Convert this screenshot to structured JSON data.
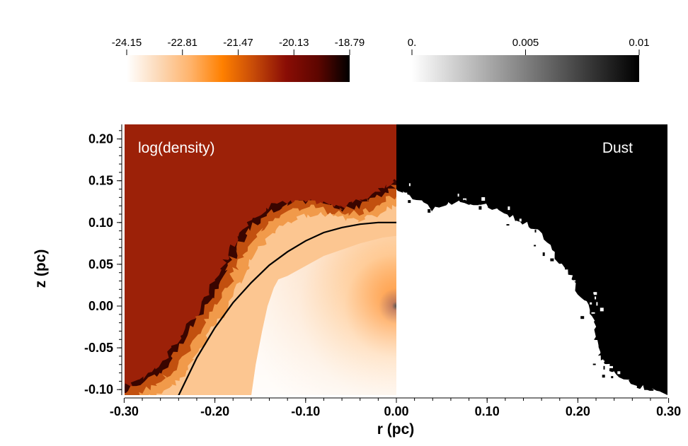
{
  "chart_data": {
    "type": "heatmap",
    "title": "",
    "xlabel": "r (pc)",
    "ylabel": "z (pc)",
    "xlim": [
      -0.325,
      0.325
    ],
    "ylim": [
      -0.108,
      0.215
    ],
    "x_ticks": [
      {
        "value": -0.3,
        "label": "-0.30"
      },
      {
        "value": -0.2,
        "label": "-0.20"
      },
      {
        "value": -0.1,
        "label": "-0.10"
      },
      {
        "value": 0.0,
        "label": "0.00"
      },
      {
        "value": 0.1,
        "label": "0.10"
      },
      {
        "value": 0.2,
        "label": "0.20"
      },
      {
        "value": 0.3,
        "label": "0.30"
      }
    ],
    "y_ticks": [
      {
        "value": 0.2,
        "label": "0.20"
      },
      {
        "value": 0.15,
        "label": "0.15"
      },
      {
        "value": 0.1,
        "label": "0.10"
      },
      {
        "value": 0.05,
        "label": "0.05"
      },
      {
        "value": 0.0,
        "label": "0.00"
      },
      {
        "value": -0.05,
        "label": "-0.05"
      },
      {
        "value": -0.1,
        "label": "-0.10"
      }
    ],
    "panels": [
      {
        "name": "left",
        "label": "log(density)",
        "r_range": [
          -0.325,
          0.0
        ],
        "background_color": "#9c2108"
      },
      {
        "name": "right",
        "label": "Dust",
        "r_range": [
          0.0,
          0.325
        ],
        "background_color": "#000000"
      }
    ],
    "colorbars": [
      {
        "quantity": "log(density)",
        "min": -24.15,
        "max": -18.79,
        "ticks": [
          {
            "value": -24.15,
            "label": "-24.15"
          },
          {
            "value": -22.81,
            "label": "-22.81"
          },
          {
            "value": -21.47,
            "label": "-21.47"
          },
          {
            "value": -20.13,
            "label": "-20.13"
          },
          {
            "value": -18.79,
            "label": "-18.79"
          }
        ],
        "colors": [
          "#ffffff",
          "#fcd9b8",
          "#ffb36b",
          "#ff8000",
          "#c64a08",
          "#8a0d05",
          "#5e0600",
          "#000000"
        ]
      },
      {
        "quantity": "Dust",
        "min": 0.0,
        "max": 0.01,
        "ticks": [
          {
            "value": 0.0,
            "label": "0."
          },
          {
            "value": 0.005,
            "label": "0.005"
          },
          {
            "value": 0.01,
            "label": "0.01"
          }
        ],
        "colors": [
          "#ffffff",
          "#000000"
        ]
      }
    ],
    "shell_front": {
      "description_free": true,
      "r": [
        -0.24,
        -0.22,
        -0.2,
        -0.18,
        -0.16,
        -0.14,
        -0.12,
        -0.1,
        -0.08,
        -0.06,
        -0.04,
        -0.02,
        0.0
      ],
      "z": [
        -0.107,
        -0.062,
        -0.026,
        0.004,
        0.028,
        0.049,
        0.065,
        0.078,
        0.088,
        0.094,
        0.098,
        0.1,
        0.1
      ]
    },
    "ionization_front_inner": {
      "r": [
        -0.16,
        -0.155,
        -0.148,
        -0.142,
        -0.135,
        -0.13,
        -0.12,
        -0.08,
        -0.04,
        -0.015,
        0.0
      ],
      "z": [
        -0.108,
        -0.07,
        -0.03,
        0.0,
        0.022,
        0.032,
        0.036,
        0.06,
        0.075,
        0.082,
        0.084
      ]
    },
    "turbulent_shell": {
      "outer_r": [
        -0.325,
        -0.31,
        -0.29,
        -0.27,
        -0.255,
        -0.24,
        -0.225,
        -0.21,
        -0.195,
        -0.185,
        -0.175,
        -0.16,
        -0.145,
        -0.125,
        -0.1,
        -0.08,
        -0.06,
        -0.04,
        -0.025,
        -0.01,
        0.0
      ],
      "outer_z": [
        -0.108,
        -0.104,
        -0.092,
        -0.08,
        -0.065,
        -0.04,
        -0.015,
        0.01,
        0.04,
        0.06,
        0.08,
        0.1,
        0.115,
        0.125,
        0.128,
        0.122,
        0.12,
        0.125,
        0.135,
        0.142,
        0.15
      ]
    },
    "dust_region_boundary": {
      "r": [
        0.0,
        0.02,
        0.04,
        0.06,
        0.08,
        0.1,
        0.12,
        0.14,
        0.16,
        0.175,
        0.19,
        0.205,
        0.215,
        0.22,
        0.225,
        0.235,
        0.25,
        0.265,
        0.28,
        0.29
      ],
      "z": [
        0.14,
        0.13,
        0.115,
        0.124,
        0.122,
        0.12,
        0.11,
        0.1,
        0.085,
        0.06,
        0.04,
        0.01,
        -0.01,
        -0.04,
        -0.06,
        -0.075,
        -0.085,
        -0.095,
        -0.1,
        -0.102
      ]
    }
  }
}
